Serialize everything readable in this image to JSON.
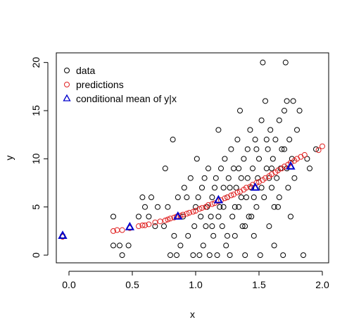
{
  "chart_data": {
    "type": "scatter",
    "title": "",
    "xlabel": "x",
    "ylabel": "y",
    "xlim": [
      -0.1,
      2.05
    ],
    "ylim": [
      -0.8,
      21
    ],
    "x_ticks": [
      0.0,
      0.5,
      1.0,
      1.5,
      2.0
    ],
    "x_tick_labels": [
      "0.0",
      "0.5",
      "1.0",
      "1.5",
      "2.0"
    ],
    "y_ticks": [
      0,
      5,
      10,
      15,
      20
    ],
    "y_tick_labels": [
      "0",
      "5",
      "10",
      "15",
      "20"
    ],
    "grid": false,
    "legend_position": "top-left",
    "legend": [
      {
        "label": "data",
        "marker": "circle",
        "color": "#000000"
      },
      {
        "label": "predictions",
        "marker": "circle",
        "color": "#e02020"
      },
      {
        "label": "conditional mean of y|x",
        "marker": "triangle",
        "color": "#0000cc"
      }
    ],
    "series": [
      {
        "name": "data",
        "marker": "circle",
        "color": "#000000",
        "points": [
          [
            -0.05,
            2
          ],
          [
            0.35,
            4
          ],
          [
            0.35,
            1
          ],
          [
            0.4,
            1
          ],
          [
            0.42,
            0
          ],
          [
            0.47,
            1
          ],
          [
            0.55,
            4
          ],
          [
            0.58,
            6
          ],
          [
            0.6,
            5
          ],
          [
            0.63,
            4
          ],
          [
            0.65,
            6
          ],
          [
            0.68,
            3
          ],
          [
            0.7,
            5
          ],
          [
            0.75,
            3
          ],
          [
            0.76,
            9
          ],
          [
            0.78,
            5
          ],
          [
            0.8,
            0
          ],
          [
            0.82,
            12
          ],
          [
            0.83,
            2
          ],
          [
            0.85,
            0
          ],
          [
            0.86,
            6
          ],
          [
            0.88,
            1
          ],
          [
            0.9,
            4
          ],
          [
            0.91,
            7
          ],
          [
            0.93,
            6
          ],
          [
            0.94,
            2
          ],
          [
            0.96,
            8
          ],
          [
            0.98,
            0
          ],
          [
            0.99,
            3
          ],
          [
            1.0,
            5
          ],
          [
            1.01,
            10
          ],
          [
            1.02,
            6
          ],
          [
            1.03,
            0
          ],
          [
            1.04,
            4
          ],
          [
            1.05,
            7
          ],
          [
            1.06,
            1
          ],
          [
            1.07,
            8
          ],
          [
            1.08,
            3
          ],
          [
            1.09,
            5
          ],
          [
            1.1,
            9
          ],
          [
            1.11,
            0
          ],
          [
            1.12,
            4
          ],
          [
            1.13,
            6
          ],
          [
            1.14,
            2
          ],
          [
            1.15,
            7
          ],
          [
            1.16,
            8
          ],
          [
            1.17,
            0
          ],
          [
            1.18,
            13
          ],
          [
            1.19,
            5
          ],
          [
            1.2,
            9
          ],
          [
            1.21,
            3
          ],
          [
            1.22,
            7
          ],
          [
            1.23,
            10
          ],
          [
            1.24,
            1
          ],
          [
            1.25,
            6
          ],
          [
            1.26,
            8
          ],
          [
            1.27,
            0
          ],
          [
            1.28,
            11
          ],
          [
            1.29,
            4
          ],
          [
            1.3,
            9
          ],
          [
            1.31,
            2
          ],
          [
            1.32,
            7
          ],
          [
            1.33,
            12
          ],
          [
            1.34,
            5
          ],
          [
            1.35,
            15
          ],
          [
            1.36,
            8
          ],
          [
            1.37,
            3
          ],
          [
            1.38,
            10
          ],
          [
            1.39,
            0
          ],
          [
            1.4,
            6
          ],
          [
            1.41,
            11
          ],
          [
            1.42,
            4
          ],
          [
            1.43,
            13
          ],
          [
            1.44,
            7
          ],
          [
            1.45,
            9
          ],
          [
            1.46,
            2
          ],
          [
            1.47,
            12
          ],
          [
            1.48,
            5
          ],
          [
            1.49,
            8
          ],
          [
            1.5,
            10
          ],
          [
            1.51,
            0
          ],
          [
            1.52,
            14
          ],
          [
            1.53,
            20
          ],
          [
            1.54,
            6
          ],
          [
            1.55,
            16
          ],
          [
            1.56,
            9
          ],
          [
            1.57,
            11
          ],
          [
            1.58,
            3
          ],
          [
            1.59,
            13
          ],
          [
            1.6,
            7
          ],
          [
            1.61,
            10
          ],
          [
            1.62,
            1
          ],
          [
            1.63,
            12
          ],
          [
            1.64,
            8
          ],
          [
            1.65,
            5
          ],
          [
            1.66,
            14
          ],
          [
            1.67,
            9
          ],
          [
            1.68,
            11
          ],
          [
            1.69,
            0
          ],
          [
            1.7,
            15
          ],
          [
            1.71,
            20
          ],
          [
            1.72,
            16
          ],
          [
            1.73,
            7
          ],
          [
            1.74,
            12
          ],
          [
            1.75,
            4
          ],
          [
            1.76,
            10
          ],
          [
            1.77,
            16
          ],
          [
            1.78,
            8
          ],
          [
            1.8,
            13
          ],
          [
            1.82,
            15
          ],
          [
            1.85,
            0
          ],
          [
            1.88,
            10
          ],
          [
            1.9,
            9
          ],
          [
            1.95,
            11
          ],
          [
            1.13,
            3
          ],
          [
            1.22,
            5
          ],
          [
            1.36,
            6
          ],
          [
            1.44,
            4
          ],
          [
            1.52,
            7
          ],
          [
            1.6,
            9
          ],
          [
            1.66,
            6
          ],
          [
            1.27,
            7
          ],
          [
            1.41,
            8
          ],
          [
            1.56,
            12
          ],
          [
            1.62,
            5
          ],
          [
            1.72,
            9
          ],
          [
            1.34,
            9
          ],
          [
            1.48,
            11
          ],
          [
            1.18,
            4
          ],
          [
            1.31,
            5
          ],
          [
            1.46,
            6
          ],
          [
            1.58,
            8
          ],
          [
            1.7,
            11
          ],
          [
            1.25,
            2
          ],
          [
            1.39,
            3
          ]
        ]
      },
      {
        "name": "predictions",
        "marker": "circle",
        "color": "#e02020",
        "points": [
          [
            -0.05,
            1.9
          ],
          [
            0.35,
            2.5
          ],
          [
            0.38,
            2.6
          ],
          [
            0.42,
            2.6
          ],
          [
            0.48,
            2.8
          ],
          [
            0.55,
            3.0
          ],
          [
            0.58,
            3.1
          ],
          [
            0.6,
            3.1
          ],
          [
            0.63,
            3.2
          ],
          [
            0.68,
            3.4
          ],
          [
            0.72,
            3.5
          ],
          [
            0.76,
            3.6
          ],
          [
            0.78,
            3.7
          ],
          [
            0.8,
            3.8
          ],
          [
            0.83,
            3.9
          ],
          [
            0.85,
            4.0
          ],
          [
            0.88,
            4.1
          ],
          [
            0.9,
            4.2
          ],
          [
            0.93,
            4.3
          ],
          [
            0.95,
            4.4
          ],
          [
            0.98,
            4.5
          ],
          [
            1.0,
            4.6
          ],
          [
            1.03,
            4.8
          ],
          [
            1.05,
            4.9
          ],
          [
            1.08,
            5.0
          ],
          [
            1.1,
            5.2
          ],
          [
            1.13,
            5.3
          ],
          [
            1.15,
            5.4
          ],
          [
            1.18,
            5.6
          ],
          [
            1.2,
            5.7
          ],
          [
            1.23,
            5.9
          ],
          [
            1.25,
            6.0
          ],
          [
            1.28,
            6.2
          ],
          [
            1.3,
            6.3
          ],
          [
            1.33,
            6.5
          ],
          [
            1.35,
            6.6
          ],
          [
            1.38,
            6.8
          ],
          [
            1.4,
            7.0
          ],
          [
            1.43,
            7.1
          ],
          [
            1.45,
            7.3
          ],
          [
            1.48,
            7.5
          ],
          [
            1.5,
            7.6
          ],
          [
            1.53,
            7.8
          ],
          [
            1.55,
            8.0
          ],
          [
            1.58,
            8.2
          ],
          [
            1.6,
            8.4
          ],
          [
            1.63,
            8.6
          ],
          [
            1.65,
            8.8
          ],
          [
            1.68,
            9.0
          ],
          [
            1.7,
            9.2
          ],
          [
            1.73,
            9.4
          ],
          [
            1.75,
            9.6
          ],
          [
            1.78,
            9.8
          ],
          [
            1.8,
            10.0
          ],
          [
            1.83,
            10.2
          ],
          [
            1.86,
            10.4
          ],
          [
            1.97,
            10.9
          ],
          [
            2.0,
            11.3
          ]
        ]
      },
      {
        "name": "conditional mean of y|x",
        "marker": "triangle",
        "color": "#0000cc",
        "points": [
          [
            -0.05,
            2.0
          ],
          [
            0.48,
            2.9
          ],
          [
            0.86,
            4.0
          ],
          [
            1.18,
            5.7
          ],
          [
            1.47,
            7.0
          ],
          [
            1.75,
            9.2
          ]
        ]
      }
    ]
  }
}
